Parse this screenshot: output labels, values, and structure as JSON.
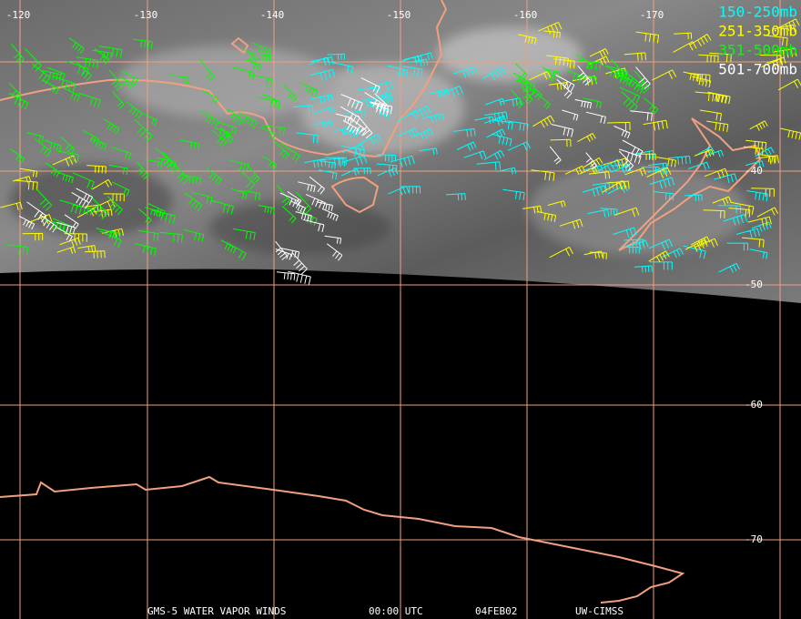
{
  "map": {
    "longitude_labels": [
      "-120",
      "-130",
      "-140",
      "-150",
      "-160",
      "-170"
    ],
    "latitude_labels": [
      "-40",
      "-50",
      "-60",
      "-70"
    ],
    "legend": [
      {
        "label": "150-250mb",
        "color": "#00ffff"
      },
      {
        "label": "251-350mb",
        "color": "#ffff00"
      },
      {
        "label": "351-500mb",
        "color": "#00ff00"
      },
      {
        "label": "501-700mb",
        "color": "#ffffff"
      }
    ],
    "footer": [
      "GMS-5 WATER VAPOR WINDS",
      "00:00 UTC",
      "04FEB02",
      "UW-CIMSS"
    ]
  }
}
